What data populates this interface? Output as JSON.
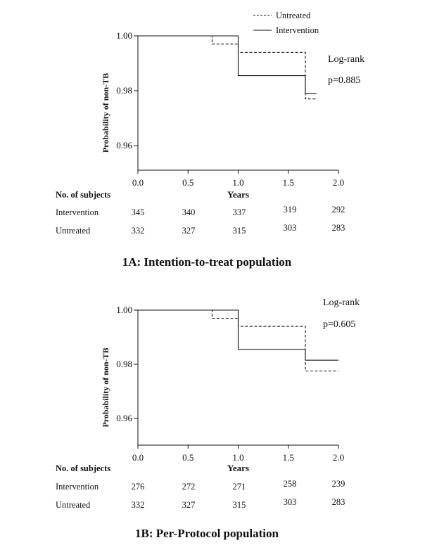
{
  "chart_data": [
    {
      "type": "line",
      "step": true,
      "caption": "1A: Intention-to-treat population",
      "xlabel": "Years",
      "ylabel": "Probability of non-TB",
      "xlim": [
        0,
        2.0
      ],
      "ylim": [
        0.95,
        1.0
      ],
      "xticks": [
        "0.0",
        "0.5",
        "1.0",
        "1.5",
        "2.0"
      ],
      "yticks": [
        "1.00",
        "0.98",
        "0.96"
      ],
      "legend": {
        "placement": "top-right"
      },
      "annotation": [
        "Log-rank",
        "p=0.885"
      ],
      "series": [
        {
          "name": "Untreated",
          "style": "dashed",
          "x": [
            0,
            0.74,
            1.0,
            1.67,
            1.78
          ],
          "y": [
            1.0,
            0.997,
            0.994,
            0.977,
            0.977
          ]
        },
        {
          "name": "Intervention",
          "style": "solid",
          "x": [
            0,
            1.0,
            1.67,
            1.78
          ],
          "y": [
            1.0,
            0.9855,
            0.979,
            0.979
          ]
        }
      ],
      "risk_table": {
        "title": "No. of subjects",
        "times": [
          0,
          0.5,
          1.0,
          1.5,
          2.0
        ],
        "rows": [
          {
            "label": "Intervention",
            "values": [
              "345",
              "340",
              "337",
              "319",
              "292"
            ]
          },
          {
            "label": "Untreated",
            "values": [
              "332",
              "327",
              "315",
              "303",
              "283"
            ]
          }
        ]
      }
    },
    {
      "type": "line",
      "step": true,
      "caption": "1B: Per-Protocol population",
      "xlabel": "Years",
      "ylabel": "Probability of non-TB",
      "xlim": [
        0,
        2.0
      ],
      "ylim": [
        0.95,
        1.0
      ],
      "xticks": [
        "0.0",
        "0.5",
        "1.0",
        "1.5",
        "2.0"
      ],
      "yticks": [
        "1.00",
        "0.98",
        "0.96"
      ],
      "annotation": [
        "Log-rank",
        "p=0.605"
      ],
      "series": [
        {
          "name": "Untreated",
          "style": "dashed",
          "x": [
            0,
            0.74,
            1.0,
            1.67,
            2.0
          ],
          "y": [
            1.0,
            0.997,
            0.994,
            0.9775,
            0.9775
          ]
        },
        {
          "name": "Intervention",
          "style": "solid",
          "x": [
            0,
            1.0,
            1.67,
            2.0
          ],
          "y": [
            1.0,
            0.9855,
            0.9815,
            0.9815
          ]
        }
      ],
      "risk_table": {
        "title": "No. of subjects",
        "times": [
          0,
          0.5,
          1.0,
          1.5,
          2.0
        ],
        "rows": [
          {
            "label": "Intervention",
            "values": [
              "276",
              "272",
              "271",
              "258",
              "239"
            ]
          },
          {
            "label": "Untreated",
            "values": [
              "332",
              "327",
              "315",
              "303",
              "283"
            ]
          }
        ]
      }
    }
  ]
}
